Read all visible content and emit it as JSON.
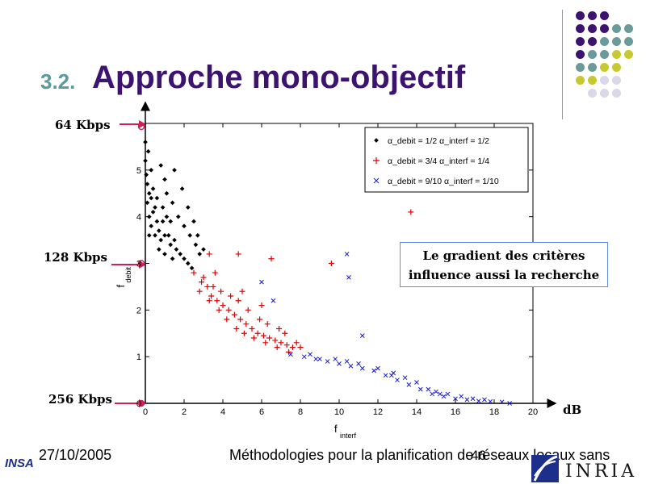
{
  "slide": {
    "section_number": "3.2.",
    "title": "Approche mono-objectif",
    "callout_line1": "Le gradient des critères",
    "callout_line2": "influence aussi la recherche",
    "kbps_top": "64 Kbps",
    "kbps_mid": "128 Kbps",
    "kbps_bottom": "256 Kbps",
    "unit_db": "dB",
    "footer_date": "27/10/2005",
    "footer_title": "Méthodologies pour la planification de réseaux locaux sans",
    "page_number": "46",
    "logo_left": "INSA",
    "logo_right": "INRIA"
  },
  "colors": {
    "title": "#3c1470",
    "section_number": "#5a9a9a",
    "arrow": "#cc2255",
    "dot_palette": [
      "#3c1470",
      "#6a9a9a",
      "#c8c832",
      "#d8d8e8"
    ]
  },
  "chart_data": {
    "type": "scatter",
    "xlabel": "f_interf",
    "ylabel": "f_debit",
    "xlim": [
      0,
      20
    ],
    "ylim": [
      0,
      6
    ],
    "xticks": [
      "0",
      "2",
      "4",
      "6",
      "8",
      "10",
      "12",
      "14",
      "16",
      "18",
      "20"
    ],
    "yticks": [
      "0",
      "1",
      "2",
      "3",
      "4",
      "5"
    ],
    "legend_placement": "top-right",
    "series": [
      {
        "name": "α_debit = 1/2 α_interf = 1/2",
        "marker": "dot",
        "color": "#000000",
        "points": [
          [
            0.0,
            5.6
          ],
          [
            0.0,
            5.2
          ],
          [
            0.05,
            4.9
          ],
          [
            0.1,
            4.7
          ],
          [
            0.2,
            4.5
          ],
          [
            0.1,
            4.3
          ],
          [
            0.3,
            4.4
          ],
          [
            0.4,
            4.1
          ],
          [
            0.2,
            4.0
          ],
          [
            0.5,
            4.2
          ],
          [
            0.6,
            3.9
          ],
          [
            0.3,
            3.8
          ],
          [
            0.7,
            3.7
          ],
          [
            0.9,
            3.9
          ],
          [
            1.0,
            3.6
          ],
          [
            0.8,
            3.5
          ],
          [
            1.2,
            3.6
          ],
          [
            1.3,
            3.4
          ],
          [
            1.5,
            3.5
          ],
          [
            1.6,
            3.3
          ],
          [
            1.8,
            3.2
          ],
          [
            2.0,
            3.1
          ],
          [
            2.2,
            3.0
          ],
          [
            2.4,
            2.9
          ],
          [
            1.1,
            4.5
          ],
          [
            1.4,
            4.3
          ],
          [
            1.7,
            4.0
          ],
          [
            2.0,
            3.8
          ],
          [
            2.3,
            3.6
          ],
          [
            2.6,
            3.4
          ],
          [
            2.8,
            3.2
          ],
          [
            0.8,
            5.1
          ],
          [
            1.0,
            4.8
          ],
          [
            1.5,
            5.0
          ],
          [
            1.9,
            4.6
          ],
          [
            2.2,
            4.2
          ],
          [
            0.4,
            4.6
          ],
          [
            0.6,
            4.4
          ],
          [
            0.9,
            4.2
          ],
          [
            1.1,
            4.0
          ],
          [
            1.3,
            3.9
          ],
          [
            0.2,
            3.6
          ],
          [
            0.5,
            3.6
          ],
          [
            0.7,
            3.3
          ],
          [
            1.0,
            3.2
          ],
          [
            1.4,
            3.1
          ],
          [
            0.3,
            5.0
          ],
          [
            0.15,
            5.4
          ],
          [
            2.5,
            3.9
          ],
          [
            2.7,
            3.6
          ],
          [
            3.0,
            3.3
          ]
        ]
      },
      {
        "name": "α_debit = 3/4 α_interf = 1/4",
        "marker": "plus",
        "color": "#e00000",
        "points": [
          [
            2.5,
            2.8
          ],
          [
            2.9,
            2.6
          ],
          [
            3.2,
            2.5
          ],
          [
            3.4,
            2.3
          ],
          [
            3.7,
            2.2
          ],
          [
            4.0,
            2.1
          ],
          [
            4.3,
            2.0
          ],
          [
            4.6,
            1.9
          ],
          [
            4.9,
            1.8
          ],
          [
            5.2,
            1.7
          ],
          [
            5.5,
            1.6
          ],
          [
            5.8,
            1.5
          ],
          [
            6.1,
            1.45
          ],
          [
            6.4,
            1.4
          ],
          [
            6.7,
            1.35
          ],
          [
            7.0,
            1.3
          ],
          [
            7.3,
            1.25
          ],
          [
            7.6,
            1.2
          ],
          [
            3.0,
            2.7
          ],
          [
            3.5,
            2.5
          ],
          [
            3.9,
            2.4
          ],
          [
            4.4,
            2.3
          ],
          [
            4.8,
            2.2
          ],
          [
            5.3,
            2.0
          ],
          [
            5.9,
            1.8
          ],
          [
            6.3,
            1.7
          ],
          [
            6.9,
            1.6
          ],
          [
            7.2,
            1.5
          ],
          [
            3.3,
            2.2
          ],
          [
            3.8,
            2.0
          ],
          [
            4.2,
            1.8
          ],
          [
            4.7,
            1.6
          ],
          [
            5.1,
            1.5
          ],
          [
            5.6,
            1.4
          ],
          [
            6.2,
            1.3
          ],
          [
            6.8,
            1.2
          ],
          [
            7.4,
            1.1
          ],
          [
            3.3,
            3.2
          ],
          [
            4.8,
            3.2
          ],
          [
            6.5,
            3.1
          ],
          [
            9.6,
            3.0
          ],
          [
            13.7,
            4.1
          ],
          [
            2.8,
            2.4
          ],
          [
            3.6,
            2.8
          ],
          [
            5.0,
            2.4
          ],
          [
            6.0,
            2.1
          ],
          [
            7.8,
            1.3
          ],
          [
            8.0,
            1.2
          ]
        ]
      },
      {
        "name": "α_debit = 9/10 α_interf = 1/10",
        "marker": "cross",
        "color": "#1a1ad0",
        "points": [
          [
            7.5,
            1.05
          ],
          [
            8.2,
            1.0
          ],
          [
            8.8,
            0.95
          ],
          [
            9.4,
            0.9
          ],
          [
            10.0,
            0.85
          ],
          [
            10.6,
            0.8
          ],
          [
            11.2,
            0.75
          ],
          [
            11.8,
            0.7
          ],
          [
            12.4,
            0.6
          ],
          [
            13.0,
            0.5
          ],
          [
            13.6,
            0.4
          ],
          [
            14.2,
            0.3
          ],
          [
            14.8,
            0.2
          ],
          [
            15.4,
            0.15
          ],
          [
            16.0,
            0.1
          ],
          [
            16.6,
            0.08
          ],
          [
            17.2,
            0.05
          ],
          [
            17.8,
            0.04
          ],
          [
            18.4,
            0.03
          ],
          [
            8.5,
            1.05
          ],
          [
            9.0,
            0.95
          ],
          [
            9.8,
            0.95
          ],
          [
            10.4,
            0.9
          ],
          [
            11.0,
            0.85
          ],
          [
            12.0,
            0.75
          ],
          [
            12.8,
            0.65
          ],
          [
            13.4,
            0.55
          ],
          [
            14.0,
            0.45
          ],
          [
            14.6,
            0.3
          ],
          [
            15.0,
            0.25
          ],
          [
            15.6,
            0.2
          ],
          [
            16.3,
            0.15
          ],
          [
            16.9,
            0.1
          ],
          [
            17.5,
            0.08
          ],
          [
            10.4,
            3.2
          ],
          [
            10.5,
            2.7
          ],
          [
            6.0,
            2.6
          ],
          [
            6.6,
            2.2
          ],
          [
            11.2,
            1.45
          ],
          [
            12.7,
            0.6
          ],
          [
            15.2,
            0.2
          ],
          [
            18.8,
            0.0
          ]
        ]
      }
    ]
  }
}
